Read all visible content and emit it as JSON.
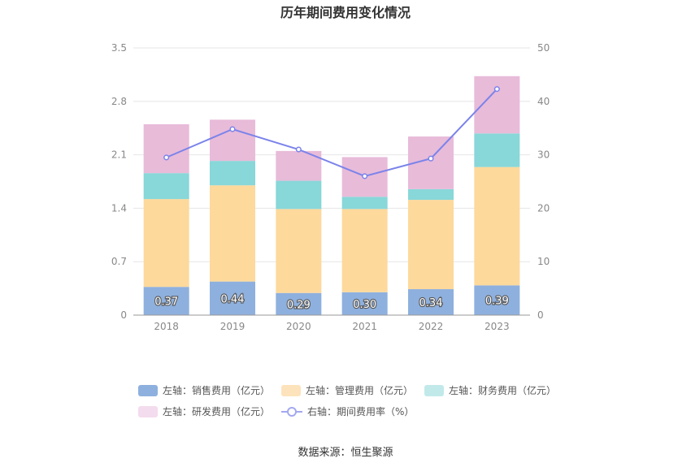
{
  "title": "历年期间费用变化情况",
  "source": "数据来源：恒生聚源",
  "chart_data": {
    "type": "bar",
    "stacked": true,
    "title": "历年期间费用变化情况",
    "categories": [
      "2018",
      "2019",
      "2020",
      "2021",
      "2022",
      "2023"
    ],
    "left_axis": {
      "ylim": [
        0,
        3.5
      ],
      "ticks": [
        "0",
        "0.7",
        "1.4",
        "2.1",
        "2.8",
        "3.5"
      ]
    },
    "right_axis": {
      "ylim": [
        0,
        50
      ],
      "ticks": [
        "0",
        "10",
        "20",
        "30",
        "40",
        "50"
      ]
    },
    "grid": true,
    "series": [
      {
        "name": "左轴：销售费用（亿元）",
        "type": "bar",
        "axis": "left",
        "color": "#8eb0de",
        "values": [
          0.37,
          0.44,
          0.29,
          0.3,
          0.34,
          0.39
        ],
        "labels": [
          "0.37",
          "0.44",
          "0.29",
          "0.30",
          "0.34",
          "0.39"
        ]
      },
      {
        "name": "左轴：管理费用（亿元）",
        "type": "bar",
        "axis": "left",
        "color": "#fdd99c",
        "values": [
          1.15,
          1.26,
          1.1,
          1.09,
          1.17,
          1.55
        ]
      },
      {
        "name": "左轴：财务费用（亿元）",
        "type": "bar",
        "axis": "left",
        "color": "#88d7d9",
        "values": [
          0.34,
          0.32,
          0.37,
          0.16,
          0.14,
          0.44
        ]
      },
      {
        "name": "左轴：研发费用（亿元）",
        "type": "bar",
        "axis": "left",
        "color": "#e8bbd9",
        "values": [
          0.64,
          0.54,
          0.39,
          0.52,
          0.69,
          0.75
        ]
      },
      {
        "name": "右轴：期间费用率（%）",
        "type": "line",
        "axis": "right",
        "color": "#7b83ea",
        "values": [
          29.5,
          34.8,
          31.0,
          26.0,
          29.3,
          42.3
        ]
      }
    ],
    "legend_position": "bottom"
  },
  "legend": {
    "rows": [
      [
        {
          "label": "左轴：销售费用（亿元）",
          "color": "#8eb0de",
          "kind": "bar"
        },
        {
          "label": "左轴：管理费用（亿元）",
          "color": "#fde3bb",
          "kind": "bar"
        },
        {
          "label": "左轴：财务费用（亿元）",
          "color": "#c2e9ea",
          "kind": "bar"
        }
      ],
      [
        {
          "label": "左轴：研发费用（亿元）",
          "color": "#f3dced",
          "kind": "bar"
        },
        {
          "label": "右轴：期间费用率（%）",
          "color": "#7b83ea",
          "kind": "line"
        }
      ]
    ]
  }
}
